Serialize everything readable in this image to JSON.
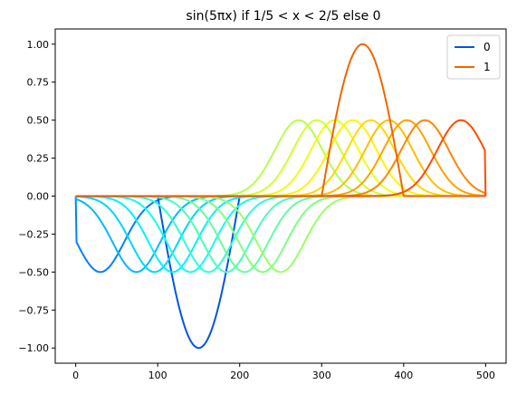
{
  "chart_data": {
    "type": "line",
    "title": "sin(5πx) if 1/5 < x < 2/5 else 0",
    "xlabel": "",
    "ylabel": "",
    "xlim": [
      -25,
      525
    ],
    "ylim": [
      -1.1,
      1.1
    ],
    "xticks": [
      0,
      100,
      200,
      300,
      400,
      500
    ],
    "xtick_labels": [
      "0",
      "100",
      "200",
      "300",
      "400",
      "500"
    ],
    "yticks": [
      -1.0,
      -0.75,
      -0.5,
      -0.25,
      0.0,
      0.25,
      0.5,
      0.75,
      1.0
    ],
    "ytick_labels": [
      "−1.00",
      "−0.75",
      "−0.50",
      "−0.25",
      "0.00",
      "0.25",
      "0.50",
      "0.75",
      "1.00"
    ],
    "grid": false,
    "legend": {
      "placement": "top-right",
      "entries": [
        {
          "label": "0",
          "color": "#0055e6"
        },
        {
          "label": "1",
          "color": "#ee6600"
        }
      ]
    },
    "series_count": 21,
    "n_points": 501,
    "colormap": "jet",
    "colormap_range": [
      0.25,
      0.8
    ],
    "emphasized_series": [
      {
        "name": "0",
        "color": "#0055e6",
        "peak_x": 150,
        "peak_y": -1.0
      },
      {
        "name": "1",
        "color": "#ee6600",
        "peak_x": 350,
        "peak_y": 1.0
      }
    ]
  }
}
